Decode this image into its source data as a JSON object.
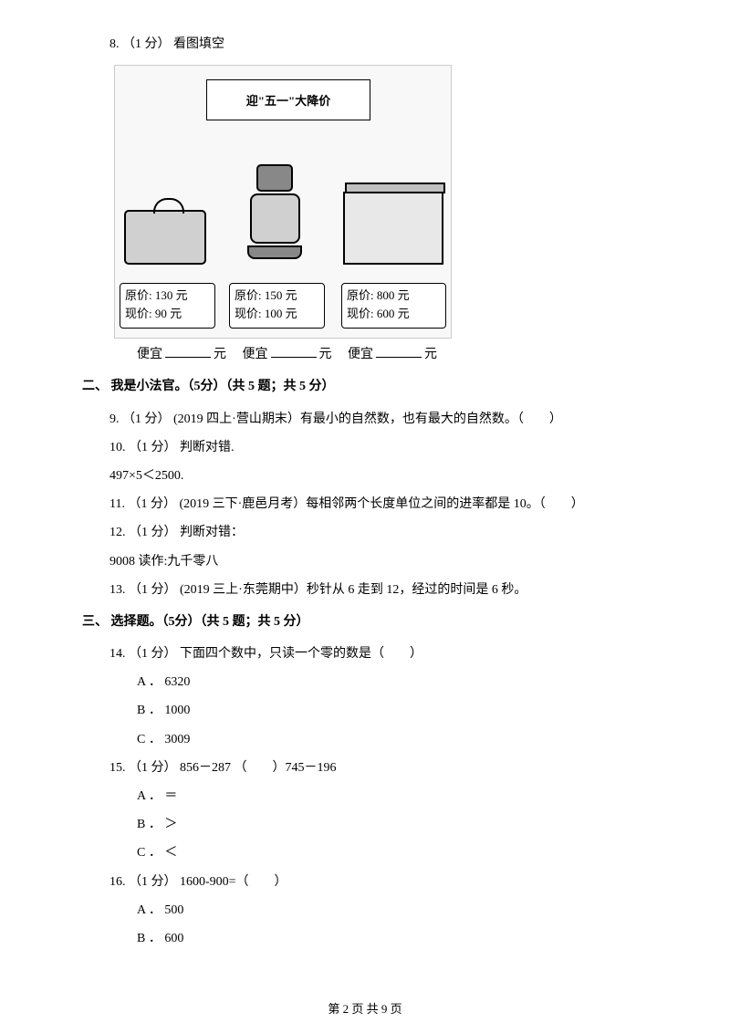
{
  "q8": {
    "header": "8. （1 分） 看图填空",
    "banner": "迎\"五一\"大降价",
    "prices": [
      {
        "orig": "原价: 130 元",
        "now": "现价: 90 元"
      },
      {
        "orig": "原价: 150 元",
        "now": "现价: 100 元"
      },
      {
        "orig": "原价: 800 元",
        "now": "现价: 600 元"
      }
    ],
    "blanks_line": {
      "prefix1": "便宜",
      "suffix": "元",
      "prefix2": "便宜",
      "prefix3": "便宜"
    }
  },
  "section2": {
    "title": "二、 我是小法官。（5分）（共 5 题；共 5 分）",
    "q9": "9. （1 分） (2019 四上·营山期末）有最小的自然数，也有最大的自然数。（　　）",
    "q10a": "10. （1 分） 判断对错.",
    "q10b": "497×5＜2500.",
    "q11": "11. （1 分） (2019 三下·鹿邑月考）每相邻两个长度单位之间的进率都是 10。（　　）",
    "q12a": "12. （1 分） 判断对错：",
    "q12b": "9008 读作:九千零八",
    "q13": "13. （1 分） (2019 三上·东莞期中）秒针从 6 走到 12，经过的时间是 6 秒。"
  },
  "section3": {
    "title": "三、 选择题。（5分）（共 5 题；共 5 分）",
    "q14": {
      "text": "14. （1 分） 下面四个数中，只读一个零的数是（　　）",
      "opts": [
        "A ． 6320",
        "B ． 1000",
        "C ． 3009"
      ]
    },
    "q15": {
      "text": "15. （1 分）  856－287 （　　）745－196",
      "opts": [
        "A ． ＝",
        "B ． ＞",
        "C ． ＜"
      ]
    },
    "q16": {
      "text": "16. （1 分） 1600-900=（　　）",
      "opts": [
        "A ． 500",
        "B ． 600"
      ]
    }
  },
  "footer": "第 2 页 共 9 页"
}
